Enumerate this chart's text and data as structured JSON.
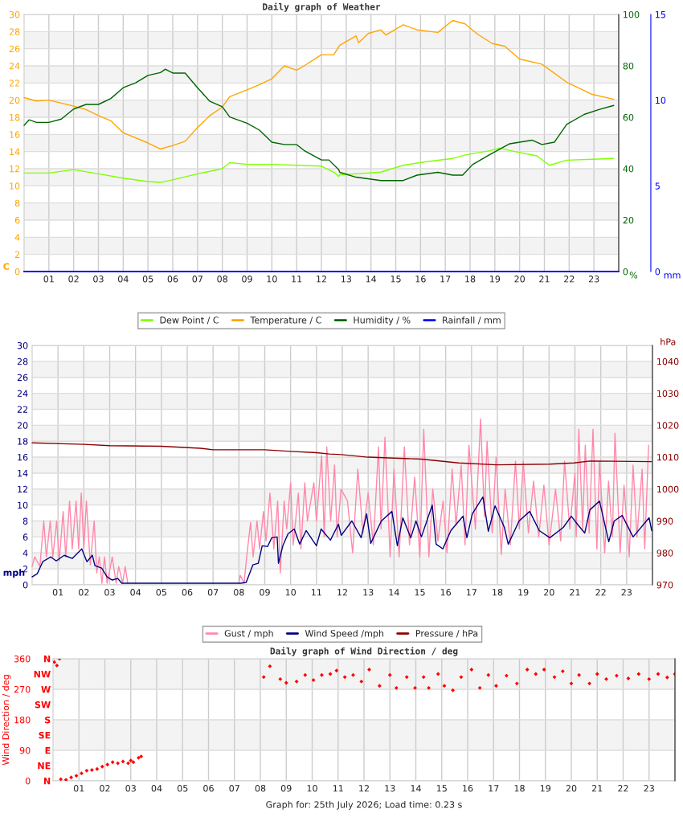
{
  "chart_data": [
    {
      "type": "line",
      "title": "Daily graph of Weather",
      "ylabel": "C",
      "y2label": "%",
      "y3label": "mm",
      "xlim": [
        0,
        24
      ],
      "xticks": [
        {
          "value": 1,
          "label": "01"
        },
        {
          "value": 2,
          "label": "02"
        },
        {
          "value": 3,
          "label": "03"
        },
        {
          "value": 4,
          "label": "04"
        },
        {
          "value": 5,
          "label": "05"
        },
        {
          "value": 6,
          "label": "06"
        },
        {
          "value": 7,
          "label": "07"
        },
        {
          "value": 8,
          "label": "08"
        },
        {
          "value": 9,
          "label": "09"
        },
        {
          "value": 10,
          "label": "10"
        },
        {
          "value": 11,
          "label": "11"
        },
        {
          "value": 12,
          "label": "12"
        },
        {
          "value": 13,
          "label": "13"
        },
        {
          "value": 14,
          "label": "14"
        },
        {
          "value": 15,
          "label": "15"
        },
        {
          "value": 16,
          "label": "16"
        },
        {
          "value": 17,
          "label": "17"
        },
        {
          "value": 18,
          "label": "18"
        },
        {
          "value": 19,
          "label": "19"
        },
        {
          "value": 20,
          "label": "20"
        },
        {
          "value": 21,
          "label": "21"
        },
        {
          "value": 22,
          "label": "22"
        },
        {
          "value": 23,
          "label": "23"
        }
      ],
      "ylim": [
        0,
        30
      ],
      "yticks": [
        0,
        2,
        4,
        6,
        8,
        10,
        12,
        14,
        16,
        18,
        20,
        22,
        24,
        26,
        28,
        30
      ],
      "y2lim": [
        0,
        100
      ],
      "y2ticks": [
        0,
        20,
        40,
        60,
        80,
        100
      ],
      "y3lim": [
        0,
        15
      ],
      "y3ticks": [
        0,
        5,
        10,
        15
      ],
      "grid": true,
      "legend": "bottom",
      "marker": "none",
      "line_style": "solid",
      "series": [
        {
          "name": "Dew Point / C",
          "color": "#80ff00",
          "x": [
            0,
            1,
            2,
            3,
            4,
            5,
            5.5,
            6,
            7,
            8,
            8.3,
            9,
            10,
            11,
            12,
            12.5,
            12.7,
            12.74,
            13.4,
            14.4,
            15.3,
            16.18,
            17.3,
            17.8,
            18.8,
            19.19,
            19.8,
            20.7,
            21.2,
            21.9,
            22.95,
            23.8
          ],
          "values": [
            11.5,
            11.5,
            11.9,
            11.4,
            10.9,
            10.5,
            10.4,
            10.7,
            11.4,
            12.0,
            12.7,
            12.5,
            12.5,
            12.4,
            12.3,
            11.6,
            11.1,
            11.3,
            11.4,
            11.6,
            12.4,
            12.8,
            13.2,
            13.6,
            14.1,
            14.4,
            14.0,
            13.5,
            12.4,
            13.0,
            13.1,
            13.2
          ]
        },
        {
          "name": "Temperature / C",
          "color": "#ffa500",
          "x": [
            0,
            0.5,
            1,
            2,
            2.5,
            3,
            3.5,
            4,
            5,
            5.5,
            6,
            6.5,
            7,
            7.5,
            8,
            8.3,
            9,
            9.5,
            10,
            10.5,
            11,
            11.3,
            12,
            12.5,
            12.74,
            13.4,
            13.5,
            13.9,
            14.4,
            14.6,
            15.3,
            15.86,
            16.7,
            17.3,
            17.8,
            18.3,
            18.9,
            19.4,
            20.0,
            20.9,
            21.9,
            22.9,
            23.8
          ],
          "values": [
            20.3,
            19.9,
            20.0,
            19.3,
            18.9,
            18.2,
            17.6,
            16.2,
            15.0,
            14.3,
            14.7,
            15.2,
            16.8,
            18.2,
            19.2,
            20.4,
            21.2,
            21.8,
            22.5,
            24.0,
            23.5,
            24.0,
            25.3,
            25.3,
            26.4,
            27.5,
            26.7,
            27.8,
            28.2,
            27.6,
            28.8,
            28.2,
            27.9,
            29.3,
            28.9,
            27.7,
            26.6,
            26.3,
            24.8,
            24.2,
            22.1,
            20.7,
            20.1
          ]
        },
        {
          "name": "Humidity / %",
          "color": "#006400",
          "axis": "y2",
          "x": [
            0,
            0.2,
            0.5,
            1,
            1.5,
            2,
            2.5,
            3,
            3.5,
            4,
            4.5,
            5,
            5.5,
            5.7,
            6,
            6.5,
            7,
            7.5,
            8,
            8.3,
            9,
            9.5,
            10,
            10.5,
            11,
            11.3,
            12,
            12.3,
            12.7,
            12.74,
            13.4,
            14.4,
            15.3,
            15.86,
            16.7,
            17.3,
            17.7,
            18.1,
            18.8,
            19.6,
            20.5,
            20.9,
            21.4,
            21.9,
            22.6,
            23.2,
            23.8
          ],
          "values": [
            56.9,
            59,
            58,
            58,
            59.3,
            63.2,
            65,
            65,
            67.3,
            71.5,
            73.4,
            76.3,
            77.4,
            78.7,
            77.2,
            77.2,
            71.5,
            66.2,
            64.1,
            60.1,
            57.7,
            55,
            50.3,
            49.4,
            49.4,
            47.1,
            43.4,
            43.4,
            39.6,
            38.6,
            36.7,
            35.4,
            35.4,
            37.5,
            38.6,
            37.5,
            37.5,
            41.6,
            45.5,
            49.7,
            51.1,
            49.4,
            50.3,
            57.2,
            61.1,
            63,
            64.6
          ]
        },
        {
          "name": "Rainfall / mm",
          "color": "#0000ff",
          "axis": "y3",
          "x": [
            0,
            24
          ],
          "values": [
            0,
            0
          ]
        }
      ]
    },
    {
      "type": "line",
      "ylabel": "mph",
      "y2label": "hPa",
      "xlim": [
        0,
        24
      ],
      "xticks": [
        {
          "value": 1,
          "label": "01"
        },
        {
          "value": 2,
          "label": "02"
        },
        {
          "value": 3,
          "label": "03"
        },
        {
          "value": 4,
          "label": "04"
        },
        {
          "value": 5,
          "label": "05"
        },
        {
          "value": 6,
          "label": "06"
        },
        {
          "value": 7,
          "label": "07"
        },
        {
          "value": 8,
          "label": "08"
        },
        {
          "value": 9,
          "label": "09"
        },
        {
          "value": 10,
          "label": "10"
        },
        {
          "value": 11,
          "label": "11"
        },
        {
          "value": 12,
          "label": "12"
        },
        {
          "value": 13,
          "label": "13"
        },
        {
          "value": 14,
          "label": "14"
        },
        {
          "value": 15,
          "label": "15"
        },
        {
          "value": 16,
          "label": "16"
        },
        {
          "value": 17,
          "label": "17"
        },
        {
          "value": 18,
          "label": "18"
        },
        {
          "value": 19,
          "label": "19"
        },
        {
          "value": 20,
          "label": "20"
        },
        {
          "value": 21,
          "label": "21"
        },
        {
          "value": 22,
          "label": "22"
        },
        {
          "value": 23,
          "label": "23"
        }
      ],
      "ylim": [
        0,
        30
      ],
      "yticks": [
        0,
        2,
        4,
        6,
        8,
        10,
        12,
        14,
        16,
        18,
        20,
        22,
        24,
        26,
        28,
        30
      ],
      "y2lim": [
        970,
        1045
      ],
      "y2ticks": [
        970,
        980,
        990,
        1000,
        1010,
        1020,
        1030,
        1040
      ],
      "grid": true,
      "legend": "bottom",
      "marker": "none",
      "line_style": "solid",
      "series": [
        {
          "name": "Gust / mph",
          "color": "#ff88aa",
          "x": [
            0,
            0.1,
            0.3,
            0.45,
            0.55,
            0.7,
            0.8,
            0.95,
            1.05,
            1.2,
            1.3,
            1.45,
            1.55,
            1.7,
            1.8,
            1.9,
            2.0,
            2.1,
            2.25,
            2.4,
            2.5,
            2.6,
            2.7,
            2.8,
            2.9,
            3.1,
            3.25,
            3.35,
            3.5,
            3.6,
            3.7,
            5.9,
            8.0,
            8.05,
            8.2,
            8.3,
            8.45,
            8.55,
            8.7,
            8.8,
            8.95,
            9.05,
            9.2,
            9.35,
            9.5,
            9.6,
            9.75,
            9.85,
            10.0,
            10.1,
            10.3,
            10.4,
            10.55,
            10.65,
            10.9,
            11.0,
            11.2,
            11.3,
            11.4,
            11.55,
            11.7,
            11.8,
            11.95,
            12.2,
            12.4,
            12.6,
            12.8,
            13.0,
            13.2,
            13.4,
            13.5,
            13.65,
            13.85,
            14.0,
            14.2,
            14.4,
            14.6,
            14.8,
            15.0,
            15.15,
            15.35,
            15.5,
            15.7,
            15.9,
            16.05,
            16.25,
            16.4,
            16.6,
            16.75,
            16.9,
            17.15,
            17.35,
            17.5,
            17.6,
            17.8,
            17.95,
            18.15,
            18.3,
            18.5,
            18.7,
            18.85,
            19.0,
            19.2,
            19.4,
            19.6,
            19.8,
            20.0,
            20.25,
            20.45,
            20.6,
            20.8,
            21.0,
            21.05,
            21.15,
            21.3,
            21.4,
            21.55,
            21.7,
            21.85,
            21.95,
            22.15,
            22.3,
            22.45,
            22.55,
            22.75,
            22.9,
            23.1,
            23.25,
            23.4,
            23.6,
            23.7,
            23.85
          ],
          "values": [
            2.3,
            3.5,
            2.3,
            8.0,
            3.5,
            8.0,
            3.5,
            8.0,
            3.0,
            9.2,
            3.5,
            10.5,
            4.5,
            10.5,
            4.5,
            11.5,
            4.5,
            10.5,
            2.5,
            8.0,
            1.5,
            3.5,
            0.2,
            3.5,
            0.2,
            3.5,
            0.2,
            2.3,
            0.2,
            2.3,
            0.2,
            null,
            0.2,
            1.2,
            0.2,
            3.5,
            7.8,
            3.5,
            8.0,
            4.5,
            9.2,
            5.5,
            11.5,
            4.5,
            10.5,
            1.5,
            10.5,
            7.0,
            12.8,
            5.0,
            11.5,
            4.5,
            12.8,
            8.0,
            12.8,
            8.0,
            16.2,
            6.0,
            17.3,
            8.0,
            15.0,
            6.0,
            12.0,
            10.5,
            4.0,
            14.5,
            6.5,
            11.5,
            5.0,
            17.3,
            7.0,
            18.5,
            3.5,
            14.5,
            3.5,
            17.3,
            5.0,
            13.5,
            3.5,
            19.5,
            3.5,
            12.0,
            5.5,
            10.5,
            4.0,
            14.5,
            7.5,
            15.0,
            5.0,
            17.5,
            7.0,
            20.8,
            8.5,
            18.0,
            6.5,
            16.0,
            3.8,
            12.0,
            5.0,
            15.5,
            7.0,
            15.5,
            6.5,
            13.0,
            6.0,
            12.5,
            5.0,
            12.0,
            5.5,
            15.5,
            7.0,
            14.0,
            6.0,
            19.5,
            7.0,
            17.5,
            6.5,
            19.5,
            4.5,
            15.5,
            4.0,
            13.0,
            6.0,
            19.0,
            4.0,
            12.5,
            3.5,
            15.0,
            6.0,
            14.5,
            4.5,
            17.5
          ]
        },
        {
          "name": "Wind Speed /mph",
          "color": "#000080",
          "x": [
            0.0,
            0.2,
            0.41,
            0.72,
            0.93,
            1.24,
            1.55,
            1.92,
            2.12,
            2.33,
            2.43,
            2.69,
            2.9,
            3.1,
            3.31,
            3.47,
            3.93,
            8.07,
            8.28,
            8.54,
            8.75,
            8.9,
            9.11,
            9.27,
            9.48,
            9.53,
            9.7,
            9.9,
            10.14,
            10.35,
            10.6,
            11.0,
            11.18,
            11.54,
            11.85,
            11.96,
            12.37,
            12.73,
            12.94,
            13.1,
            13.51,
            13.92,
            14.13,
            14.34,
            14.65,
            14.85,
            15.06,
            15.48,
            15.63,
            15.89,
            16.2,
            16.67,
            16.82,
            17.03,
            17.44,
            17.65,
            17.91,
            18.27,
            18.42,
            18.84,
            19.25,
            19.62,
            20.03,
            20.55,
            20.86,
            21.12,
            21.38,
            21.58,
            21.95,
            22.31,
            22.52,
            22.83,
            23.25,
            23.87,
            23.97
          ],
          "values": [
            1.0,
            1.4,
            2.9,
            3.5,
            3.0,
            3.7,
            3.3,
            4.5,
            2.9,
            3.7,
            2.4,
            2.1,
            1.0,
            0.6,
            0.8,
            0.2,
            0.2,
            0.2,
            0.3,
            2.5,
            2.7,
            4.9,
            4.8,
            5.9,
            6.0,
            2.7,
            4.9,
            6.4,
            7.0,
            5.1,
            6.8,
            4.9,
            7.0,
            5.6,
            7.6,
            6.2,
            8.0,
            5.9,
            8.9,
            5.2,
            8.0,
            9.2,
            4.9,
            8.4,
            5.9,
            8.0,
            6.0,
            10.0,
            5.1,
            4.5,
            6.8,
            8.6,
            5.9,
            8.9,
            11.0,
            6.7,
            9.9,
            7.2,
            5.1,
            8.0,
            9.2,
            6.8,
            5.9,
            7.2,
            8.6,
            7.5,
            6.5,
            9.4,
            10.5,
            5.4,
            8.0,
            8.7,
            6.0,
            8.4,
            6.8
          ]
        },
        {
          "name": "Pressure / hPa",
          "color": "#8b0000",
          "axis": "y2",
          "x": [
            0,
            2,
            3,
            5,
            6.5,
            7,
            9,
            10,
            11,
            11.5,
            11.96,
            12.99,
            15.06,
            16.5,
            17.96,
            20.03,
            20.96,
            21.58,
            23.96
          ],
          "values": [
            1014.5,
            1014.0,
            1013.6,
            1013.4,
            1012.8,
            1012.3,
            1012.3,
            1011.8,
            1011.4,
            1011.0,
            1010.8,
            1010.0,
            1009.4,
            1008.2,
            1007.6,
            1007.8,
            1008.2,
            1008.8,
            1008.6
          ]
        }
      ]
    },
    {
      "type": "scatter",
      "title": "Daily graph of Wind Direction / deg",
      "ylabel": "Wind Direction / deg",
      "xlim": [
        0,
        24
      ],
      "xticks": [
        {
          "value": 1,
          "label": "01"
        },
        {
          "value": 2,
          "label": "02"
        },
        {
          "value": 3,
          "label": "03"
        },
        {
          "value": 4,
          "label": "04"
        },
        {
          "value": 5,
          "label": "05"
        },
        {
          "value": 6,
          "label": "06"
        },
        {
          "value": 7,
          "label": "07"
        },
        {
          "value": 8,
          "label": "08"
        },
        {
          "value": 9,
          "label": "09"
        },
        {
          "value": 10,
          "label": "10"
        },
        {
          "value": 11,
          "label": "11"
        },
        {
          "value": 12,
          "label": "12"
        },
        {
          "value": 13,
          "label": "13"
        },
        {
          "value": 14,
          "label": "14"
        },
        {
          "value": 15,
          "label": "15"
        },
        {
          "value": 16,
          "label": "16"
        },
        {
          "value": 17,
          "label": "17"
        },
        {
          "value": 18,
          "label": "18"
        },
        {
          "value": 19,
          "label": "19"
        },
        {
          "value": 20,
          "label": "20"
        },
        {
          "value": 21,
          "label": "21"
        },
        {
          "value": 22,
          "label": "22"
        },
        {
          "value": 23,
          "label": "23"
        }
      ],
      "ylim": [
        0,
        360
      ],
      "yticks": [
        0,
        90,
        180,
        270,
        360
      ],
      "y2_categories": [
        "N",
        "NW",
        "W",
        "SW",
        "S",
        "SE",
        "E",
        "NE",
        "N"
      ],
      "grid": true,
      "marker": "diamond",
      "annotations": [
        "Graph for: 25th July 2026; Load time: 0.23 s"
      ],
      "series": [
        {
          "color": "#ff0000",
          "x": [
            0.05,
            0.15,
            0.25,
            0.3,
            0.5,
            0.7,
            0.9,
            1.1,
            1.3,
            1.5,
            1.7,
            1.9,
            2.1,
            2.3,
            2.5,
            2.7,
            2.9,
            3.0,
            3.1,
            3.3,
            3.4,
            8.13,
            8.37,
            8.77,
            9.0,
            9.4,
            9.73,
            10.05,
            10.37,
            10.7,
            10.94,
            11.26,
            11.58,
            11.9,
            12.2,
            12.6,
            13.0,
            13.25,
            13.65,
            13.97,
            14.3,
            14.5,
            14.86,
            15.1,
            15.43,
            15.75,
            16.15,
            16.47,
            16.8,
            17.1,
            17.5,
            17.9,
            18.3,
            18.63,
            18.95,
            19.35,
            19.67,
            20.0,
            20.3,
            20.7,
            21.0,
            21.35,
            21.75,
            22.2,
            22.6,
            23.0,
            23.35,
            23.7,
            24.0
          ],
          "values": [
            350,
            340,
            360,
            5,
            3,
            10,
            15,
            22,
            30,
            32,
            35,
            42,
            48,
            55,
            52,
            57,
            52,
            60,
            55,
            68,
            72,
            306,
            338,
            300,
            289,
            293,
            312,
            297,
            312,
            315,
            325,
            306,
            312,
            293,
            328,
            280,
            312,
            274,
            306,
            274,
            306,
            274,
            315,
            280,
            267,
            306,
            328,
            274,
            312,
            280,
            310,
            287,
            328,
            315,
            328,
            306,
            323,
            287,
            312,
            287,
            315,
            300,
            310,
            302,
            315,
            300,
            315,
            305,
            315
          ]
        }
      ]
    }
  ]
}
